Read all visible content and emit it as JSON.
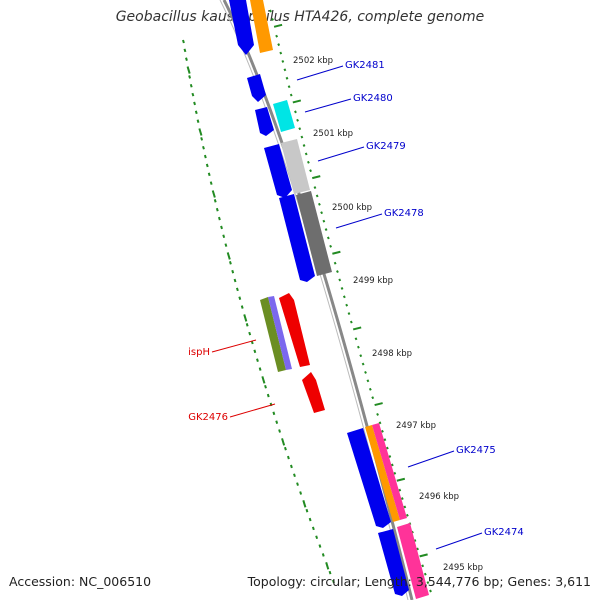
{
  "title": "Geobacillus kaustophilus HTA426, complete genome",
  "footer": {
    "accession": "Accession: NC_006510",
    "summary": "Topology: circular; Length: 3,544,776 bp; Genes: 3,611"
  },
  "scale_labels": [
    "2502 kbp",
    "2501 kbp",
    "2500 kbp",
    "2499 kbp",
    "2498 kbp",
    "2497 kbp",
    "2496 kbp",
    "2495 kbp"
  ],
  "gene_labels": [
    {
      "text": "GK2481",
      "strand": "forward"
    },
    {
      "text": "GK2480",
      "strand": "forward"
    },
    {
      "text": "GK2479",
      "strand": "forward"
    },
    {
      "text": "GK2478",
      "strand": "forward"
    },
    {
      "text": "ispH",
      "strand": "reverse"
    },
    {
      "text": "GK2476",
      "strand": "reverse"
    },
    {
      "text": "GK2475",
      "strand": "forward"
    },
    {
      "text": "GK2474",
      "strand": "forward"
    }
  ],
  "colors": {
    "forward_label": "#0000cc",
    "reverse_label": "#dd0000",
    "cds_blue": "#0000ee",
    "cds_red": "#ee0000",
    "backbone": "#808080",
    "gc_dots": "#228b22",
    "cog_orange": "#ff9900",
    "cog_cyan": "#00e5e5",
    "cog_lightgray": "#c8c8c8",
    "cog_darkgray": "#6e6e6e",
    "cog_olive": "#6b8e23",
    "cog_slate": "#7b68ee",
    "cog_pink": "#ff3399"
  }
}
